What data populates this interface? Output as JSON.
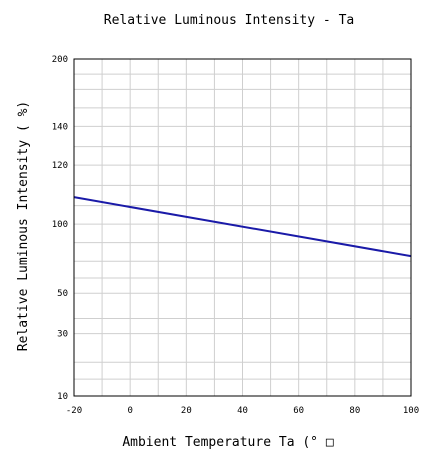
{
  "chart_data": {
    "type": "line",
    "title": "Relative Luminous Intensity - Ta",
    "xlabel": "Ambient Temperature Ta (° □",
    "ylabel": "Relative Luminous Intensity (      %)",
    "xlim": [
      -20,
      100
    ],
    "x_ticks": [
      "-20",
      "0",
      "20",
      "40",
      "60",
      "80",
      "100"
    ],
    "y_tick_labels": [
      {
        "label": "200",
        "level": 1.0
      },
      {
        "label": "140",
        "level": 0.8
      },
      {
        "label": "120",
        "level": 0.685
      },
      {
        "label": "100",
        "level": 0.51
      },
      {
        "label": "50",
        "level": 0.305
      },
      {
        "label": "30",
        "level": 0.185
      },
      {
        "label": "10",
        "level": 0.0
      }
    ],
    "y_gridlines_levels": [
      0,
      0.05,
      0.1,
      0.185,
      0.23,
      0.305,
      0.35,
      0.4,
      0.455,
      0.51,
      0.565,
      0.625,
      0.685,
      0.74,
      0.8,
      0.855,
      0.91,
      0.955,
      1.0
    ],
    "x_minor_step": 10,
    "grid": true,
    "series": [
      {
        "color": "#1a1aa8",
        "points": [
          {
            "x": -20,
            "y_level": 0.59
          },
          {
            "x": 100,
            "y_level": 0.415
          }
        ]
      }
    ]
  }
}
